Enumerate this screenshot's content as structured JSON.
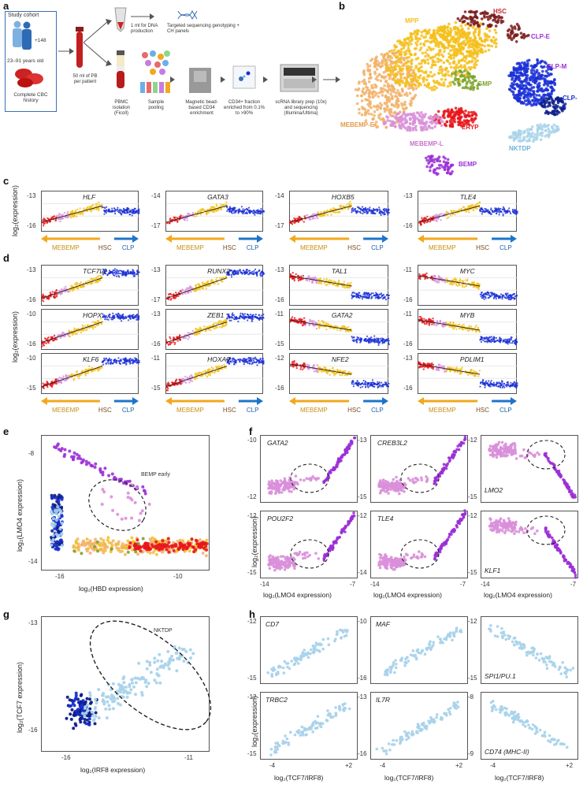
{
  "panel_letters": {
    "a": "a",
    "b": "b",
    "c": "c",
    "d": "d",
    "e": "e",
    "f": "f",
    "g": "g",
    "h": "h"
  },
  "panel_a": {
    "cohort_title": "Study cohort",
    "count": "+148",
    "age": "23–91 years old",
    "cbc": "Complete CBC history",
    "pb": "50 ml of PB per patient",
    "dna": "1 ml for DNA production",
    "seq": "Targeted sequencing genotyping + CH panels",
    "pbmc": "PBMC isolation (Ficoll)",
    "pool": "Sample pooling",
    "mag": "Magnetic bead-based CD34 enrichment",
    "frac": "CD34+ fraction enriched from 0.1% to >90%",
    "lib": "scRNA library prep (10x) and sequencing (Illumina/Ultima)"
  },
  "panel_b": {
    "labels": [
      "MPP",
      "HSC",
      "CLP-E",
      "CLP-M",
      "CLP-L",
      "NKTDP",
      "GMP",
      "ERYP",
      "MEBEMP-E",
      "MEBEMP-L",
      "BEMP"
    ]
  },
  "panel_c": {
    "genes": [
      "HLF",
      "GATA3",
      "HOXB5",
      "TLE4"
    ],
    "yt": [
      [
        "-13",
        "-16"
      ],
      [
        "-14",
        "-17"
      ],
      [
        "-14",
        "-17"
      ],
      [
        "-13",
        "-16"
      ]
    ],
    "x_left": "MEBEMP",
    "x_mid": "HSC",
    "x_right": "CLP",
    "ylabel": "log₂(expression)"
  },
  "panel_d": {
    "genes": [
      [
        "TCF7L2",
        "RUNX3",
        "TAL1",
        "MYC"
      ],
      [
        "HOPX",
        "ZEB1",
        "GATA2",
        "MYB"
      ],
      [
        "KLF6",
        "HOXA9",
        "NFE2",
        "PDLIM1"
      ]
    ],
    "yt": [
      [
        [
          "-13",
          "-16"
        ],
        [
          "-13",
          "-17"
        ],
        [
          "-13",
          "-16"
        ],
        [
          "-11",
          "-16"
        ]
      ],
      [
        [
          "-10",
          "-16"
        ],
        [
          "-13",
          "-16"
        ],
        [
          "-11",
          "-15"
        ],
        [
          "-11",
          "-16"
        ]
      ],
      [
        [
          "-10",
          "-15"
        ],
        [
          "-11",
          "-15"
        ],
        [
          "-12",
          "-16"
        ],
        [
          "-13",
          "-16"
        ]
      ]
    ],
    "ylabel": "log₂(expression)"
  },
  "panel_e": {
    "annot": "BEMP early",
    "yt": [
      "-8",
      "-14"
    ],
    "xt": [
      "-16",
      "-10"
    ],
    "ylabel": "log₂(LMO4 expression)",
    "xlabel": "log₂(HBD expression)"
  },
  "panel_f": {
    "genes": [
      [
        "GATA2",
        "CREB3L2",
        "LMO2"
      ],
      [
        "POU2F2",
        "TLE4",
        "KLF1"
      ]
    ],
    "yt": [
      [
        [
          "-10",
          "-12"
        ],
        [
          "-13",
          "-15"
        ],
        [
          "-12",
          "-15"
        ]
      ],
      [
        [
          "-12",
          "-15"
        ],
        [
          "-12",
          "-14"
        ],
        [
          "-12",
          "-15"
        ]
      ]
    ],
    "xt": [
      "-14",
      "-7"
    ],
    "xlabel": "log₂(LMO4 expression)",
    "ylabel": "log₂(expression)"
  },
  "panel_g": {
    "annot": "NKTDP",
    "yt": [
      "-13",
      "-16"
    ],
    "xt": [
      "-16",
      "-11"
    ],
    "ylabel": "log₂(TCF7 expression)",
    "xlabel": "log₂(IRF8 expression)"
  },
  "panel_h": {
    "genes": [
      [
        "CD7",
        "MAF",
        "SPI1/PU.1"
      ],
      [
        "TRBC2",
        "IL7R",
        "CD74 (MHC-II)"
      ]
    ],
    "yt": [
      [
        [
          "-12",
          "-15"
        ],
        [
          "-10",
          "-16"
        ],
        [
          "-12",
          "-15"
        ]
      ],
      [
        [
          "-12",
          "-15"
        ],
        [
          "-13",
          "-16"
        ],
        [
          "-8",
          "-9"
        ]
      ]
    ],
    "xt": [
      "-4",
      "+2"
    ],
    "xlabel": "log₂(TCF7/IRF8)",
    "ylabel": "log₂(expression)"
  },
  "colors": {
    "ery": "#e8161b",
    "meb": "#f2b26a",
    "mpp": "#f4c01c",
    "hsc": "#8a1c1c",
    "gmp": "#7aa32a",
    "bemp": "#9b2fd6",
    "clp": "#1a2fd6",
    "clpl": "#0d1f8a",
    "nktdp": "#a9d3ea",
    "lbemp": "#d98fd9",
    "orange_arrow": "#f2a81c",
    "blue_arrow": "#1e74c9"
  }
}
